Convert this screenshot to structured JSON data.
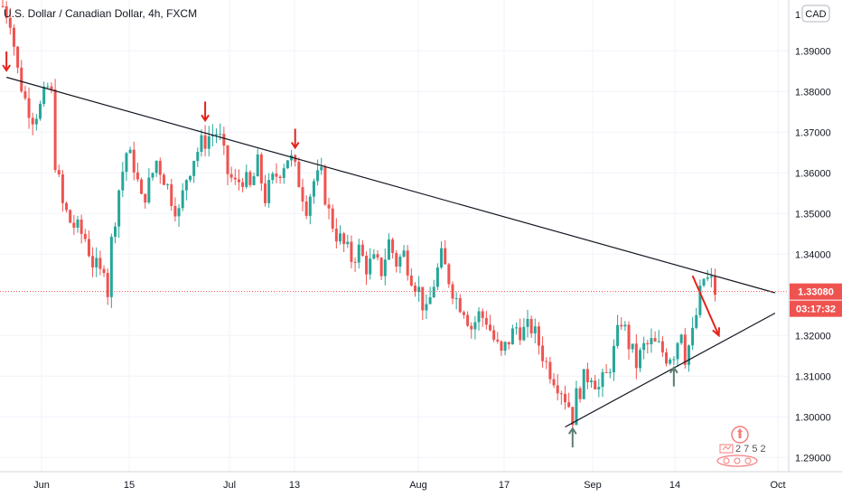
{
  "chart_data": {
    "type": "candlestick",
    "title": "U.S. Dollar / Canadian Dollar, 4h, FXCM",
    "currency": "CAD",
    "y_axis": {
      "ylim": [
        1.2865,
        1.4025
      ],
      "ticks": [
        "1.29000",
        "1.30000",
        "1.31000",
        "1.32000",
        "1.33000",
        "1.34000",
        "1.35000",
        "1.36000",
        "1.37000",
        "1.38000",
        "1.39000"
      ],
      "top_label_partial": "1"
    },
    "x_axis": {
      "ticks": [
        "Jun",
        "15",
        "Jul",
        "13",
        "Aug",
        "17",
        "Sep",
        "14",
        "Oct"
      ]
    },
    "last_price": "1.33080",
    "countdown": "03:17:32",
    "colors": {
      "up": "#26a69a",
      "down": "#ef5350",
      "trendline": "#131722",
      "annotation": "#e32219",
      "support_arrow": "#5d7d73",
      "price_badge": "#ef5350"
    },
    "path_anchors": [
      [
        0,
        1.401
      ],
      [
        2,
        1.398
      ],
      [
        4,
        1.385
      ],
      [
        6,
        1.378
      ],
      [
        8,
        1.374
      ],
      [
        10,
        1.376
      ],
      [
        12,
        1.381
      ],
      [
        13,
        1.379
      ],
      [
        14,
        1.363
      ],
      [
        16,
        1.352
      ],
      [
        18,
        1.348
      ],
      [
        20,
        1.346
      ],
      [
        22,
        1.344
      ],
      [
        24,
        1.338
      ],
      [
        26,
        1.335
      ],
      [
        27,
        1.338
      ],
      [
        28,
        1.331
      ],
      [
        29,
        1.343
      ],
      [
        31,
        1.356
      ],
      [
        33,
        1.365
      ],
      [
        35,
        1.362
      ],
      [
        37,
        1.353
      ],
      [
        39,
        1.357
      ],
      [
        41,
        1.363
      ],
      [
        43,
        1.359
      ],
      [
        45,
        1.354
      ],
      [
        47,
        1.35
      ],
      [
        49,
        1.359
      ],
      [
        51,
        1.364
      ],
      [
        53,
        1.367
      ],
      [
        55,
        1.369
      ],
      [
        57,
        1.37
      ],
      [
        58,
        1.368
      ],
      [
        60,
        1.36
      ],
      [
        62,
        1.357
      ],
      [
        64,
        1.359
      ],
      [
        66,
        1.356
      ],
      [
        68,
        1.362
      ],
      [
        70,
        1.354
      ],
      [
        72,
        1.358
      ],
      [
        74,
        1.361
      ],
      [
        76,
        1.364
      ],
      [
        77,
        1.363
      ],
      [
        79,
        1.358
      ],
      [
        81,
        1.352
      ],
      [
        83,
        1.358
      ],
      [
        85,
        1.359
      ],
      [
        87,
        1.35
      ],
      [
        89,
        1.345
      ],
      [
        91,
        1.342
      ],
      [
        93,
        1.339
      ],
      [
        95,
        1.341
      ],
      [
        97,
        1.337
      ],
      [
        99,
        1.338
      ],
      [
        101,
        1.336
      ],
      [
        103,
        1.343
      ],
      [
        105,
        1.338
      ],
      [
        107,
        1.34
      ],
      [
        109,
        1.335
      ],
      [
        111,
        1.331
      ],
      [
        113,
        1.325
      ],
      [
        115,
        1.333
      ],
      [
        117,
        1.339
      ],
      [
        119,
        1.334
      ],
      [
        121,
        1.329
      ],
      [
        123,
        1.327
      ],
      [
        125,
        1.322
      ],
      [
        127,
        1.325
      ],
      [
        129,
        1.324
      ],
      [
        131,
        1.319
      ],
      [
        133,
        1.315
      ],
      [
        135,
        1.319
      ],
      [
        137,
        1.322
      ],
      [
        139,
        1.321
      ],
      [
        141,
        1.322
      ],
      [
        143,
        1.318
      ],
      [
        145,
        1.313
      ],
      [
        147,
        1.31
      ],
      [
        149,
        1.307
      ],
      [
        151,
        1.303
      ],
      [
        152,
        1.3
      ],
      [
        153,
        1.305
      ],
      [
        155,
        1.309
      ],
      [
        157,
        1.311
      ],
      [
        159,
        1.307
      ],
      [
        161,
        1.31
      ],
      [
        163,
        1.316
      ],
      [
        165,
        1.324
      ],
      [
        167,
        1.318
      ],
      [
        169,
        1.313
      ],
      [
        171,
        1.317
      ],
      [
        173,
        1.318
      ],
      [
        175,
        1.317
      ],
      [
        177,
        1.315
      ],
      [
        179,
        1.316
      ],
      [
        181,
        1.322
      ],
      [
        182,
        1.315
      ],
      [
        184,
        1.32
      ],
      [
        186,
        1.33
      ],
      [
        187,
        1.334
      ],
      [
        189,
        1.333
      ],
      [
        190,
        1.3308
      ]
    ],
    "trendlines": [
      {
        "x": [
          1,
          206
        ],
        "y": [
          1.3835,
          1.3305
        ]
      },
      {
        "x": [
          150,
          206
        ],
        "y": [
          1.2975,
          1.3255
        ]
      }
    ],
    "arrows": [
      {
        "dir": "down",
        "x": 1,
        "y": 1.3845
      },
      {
        "dir": "down",
        "x": 54,
        "y": 1.3722
      },
      {
        "dir": "down",
        "x": 78,
        "y": 1.3655
      },
      {
        "dir": "up",
        "x": 152,
        "y": 1.2978
      },
      {
        "dir": "up",
        "x": 179,
        "y": 1.3128
      }
    ],
    "projection": {
      "x": [
        184,
        191
      ],
      "y": [
        1.3347,
        1.32
      ]
    }
  }
}
